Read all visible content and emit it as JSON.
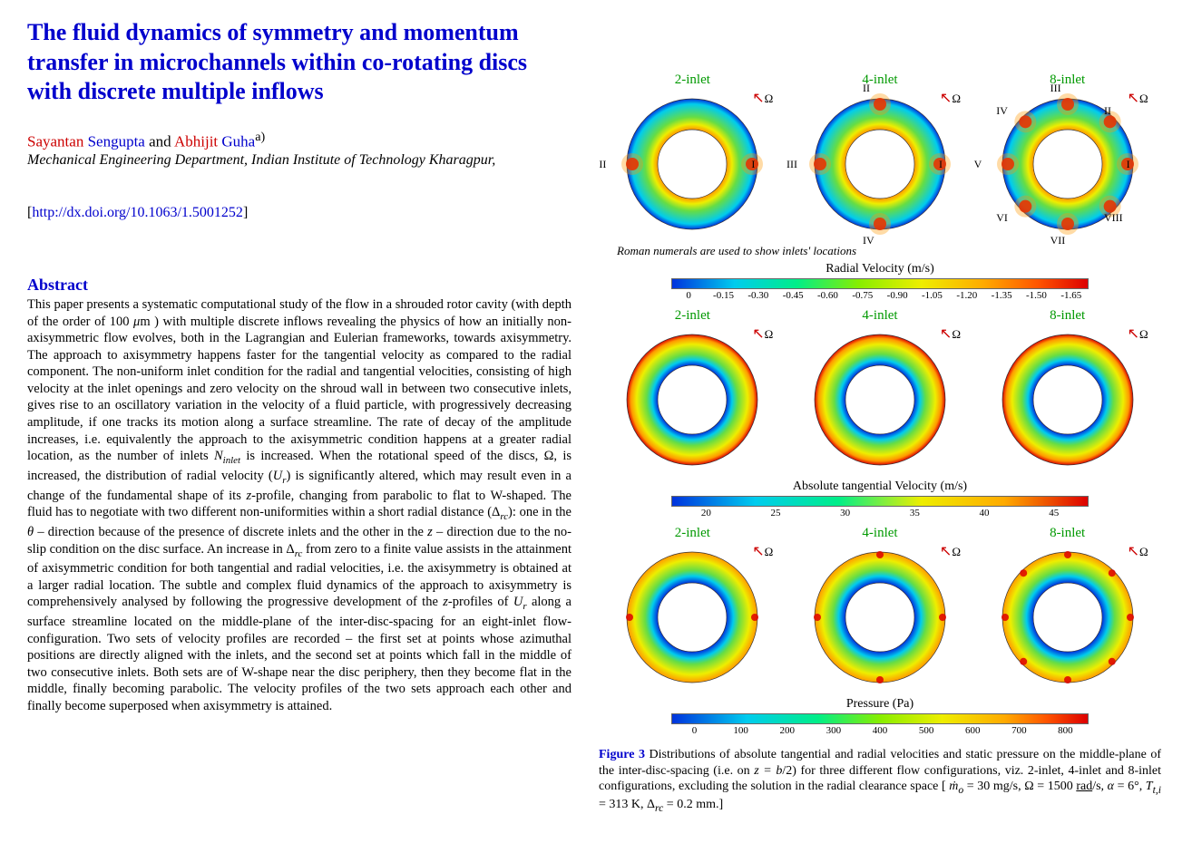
{
  "title": "The fluid dynamics of symmetry and momentum transfer in microchannels within co-rotating discs with discrete multiple inflows",
  "authors": {
    "a1_first": "Sayantan",
    "a1_last": "Sengupta",
    "a2_first": "Abhijit",
    "a2_last": "Guha",
    "super": "a)",
    "joiner": " and "
  },
  "affiliation": "Mechanical Engineering Department, Indian Institute of Technology Kharagpur,",
  "doi": {
    "open": "[",
    "url": "http://dx.doi.org/10.1063/1.5001252",
    "close": "]"
  },
  "abstract_heading": "Abstract",
  "abstract_html": "This paper presents a systematic computational study of the flow in a shrouded rotor cavity (with depth of the order of 100 <i>μ</i>m ) with multiple discrete inflows revealing the physics of how an initially non-axisymmetric flow evolves, both in the Lagrangian and Eulerian frameworks, towards axisymmetry. The approach to axisymmetry happens faster for the tangential velocity as compared to the radial component. The non-uniform inlet condition for the radial and tangential velocities, consisting of high velocity at the inlet openings and zero velocity on the shroud wall in between two consecutive inlets, gives rise to an oscillatory variation in the velocity of a fluid particle, with progressively decreasing amplitude, if one tracks its motion along a surface streamline. The rate of decay of the amplitude increases, i.e. equivalently the approach to the axisymmetric condition happens at a greater radial location, as the number of inlets <i>N<sub>inlet</sub></i> is increased. When the rotational speed of the discs, Ω, is increased, the distribution of radial velocity (<i>U<sub>r</sub></i>) is significantly altered, which may result even in a change of the fundamental shape of its <i>z</i>-profile, changing from parabolic to flat to W-shaped. The fluid has to negotiate with two different non-uniformities within a short radial distance (Δ<i><sub>rc</sub></i>): one in the <i>θ</i> – direction because of the presence of discrete inlets and the other in the <i>z</i> – direction due to the no-slip condition on the disc surface. An increase in Δ<i><sub>rc</sub></i> from zero to a finite value assists in the attainment of axisymmetric condition for both tangential and radial velocities, i.e. the axisymmetry is obtained at a larger radial location. The subtle and complex fluid dynamics of the approach to axisymmetry is comprehensively analysed by following the progressive development of the <i>z</i>-profiles of <i>U<sub>r</sub></i> along a surface streamline located on the middle-plane of the inter-disc-spacing for an eight-inlet flow-configuration. Two sets of velocity profiles are recorded – the first set at points whose azimuthal positions are directly aligned with the inlets, and the second set at points which fall in the middle of two consecutive inlets. Both sets are of W-shape near the disc periphery, then they become flat in the middle, finally becoming parabolic. The velocity profiles of the two sets approach each other and finally become superposed when axisymmetry is attained.",
  "figure": {
    "row_labels": [
      "2-inlet",
      "4-inlet",
      "8-inlet"
    ],
    "roman_note": "Roman numerals are used to show inlets' locations",
    "omega_symbol": "Ω",
    "disc": {
      "outer_r": 72,
      "inner_r": 38,
      "colors": {
        "rim_blue": "#0033dd",
        "rim_cyan": "#00ccee",
        "mid_green": "#66dd44",
        "mid_yellow": "#eeee00",
        "inner_orange": "#ff9900",
        "hotspot_red": "#dd0000",
        "inner_fill": "#ffffff"
      }
    },
    "row1": {
      "hotspots": {
        "two": [
          [
            1,
            0
          ],
          [
            -1,
            0
          ]
        ],
        "four": [
          [
            1,
            0
          ],
          [
            0,
            1
          ],
          [
            -1,
            0
          ],
          [
            0,
            -1
          ]
        ],
        "eight": [
          [
            1,
            0
          ],
          [
            0.707,
            0.707
          ],
          [
            0,
            1
          ],
          [
            -0.707,
            0.707
          ],
          [
            -1,
            0
          ],
          [
            -0.707,
            -0.707
          ],
          [
            0,
            -1
          ],
          [
            0.707,
            -0.707
          ]
        ]
      },
      "roman": {
        "two": [
          "I",
          "II"
        ],
        "four": [
          "I",
          "II",
          "III",
          "IV"
        ],
        "eight": [
          "I",
          "II",
          "III",
          "IV",
          "V",
          "VI",
          "VII",
          "VIII"
        ]
      }
    },
    "colorbars": [
      {
        "title": "Radial Velocity (m/s)",
        "ticks": [
          "0",
          "-0.15",
          "-0.30",
          "-0.45",
          "-0.60",
          "-0.75",
          "-0.90",
          "-1.05",
          "-1.20",
          "-1.35",
          "-1.50",
          "-1.65"
        ],
        "gradient": "linear-gradient(90deg,#0033dd 0%,#00ccee 15%,#00ee88 30%,#88ee00 45%,#eeee00 60%,#ffaa00 75%,#ff5500 88%,#dd0000 100%)"
      },
      {
        "title": "Absolute tangential Velocity (m/s)",
        "ticks": [
          "20",
          "25",
          "30",
          "35",
          "40",
          "45"
        ],
        "gradient": "linear-gradient(90deg,#0033dd 0%,#00ccee 20%,#00ee88 40%,#eeee00 60%,#ffaa00 80%,#dd0000 100%)"
      },
      {
        "title": "Pressure (Pa)",
        "ticks": [
          "0",
          "100",
          "200",
          "300",
          "400",
          "500",
          "600",
          "700",
          "800"
        ],
        "gradient": "linear-gradient(90deg,#0033dd 0%,#00ccee 18%,#00ee88 35%,#88ee00 50%,#eeee00 65%,#ffaa00 80%,#ff5500 90%,#dd0000 100%)"
      }
    ],
    "caption_html": "<b>Figure 3</b> Distributions of absolute tangential and radial velocities and static pressure on the middle-plane of the inter-disc-spacing (i.e. on <i>z = b</i>/2) for three different flow configurations, viz. 2-inlet, 4-inlet and 8-inlet configurations, excluding the solution in the radial clearance space [ <i>ṁ<sub>o</sub></i> = 30 mg/s, Ω = 1500 <u>rad</u>/s, <i>α</i> = 6°, <i>T<sub>t,i</sub></i> = 313 K, Δ<i><sub>rc</sub></i> = 0.2 mm.]"
  }
}
